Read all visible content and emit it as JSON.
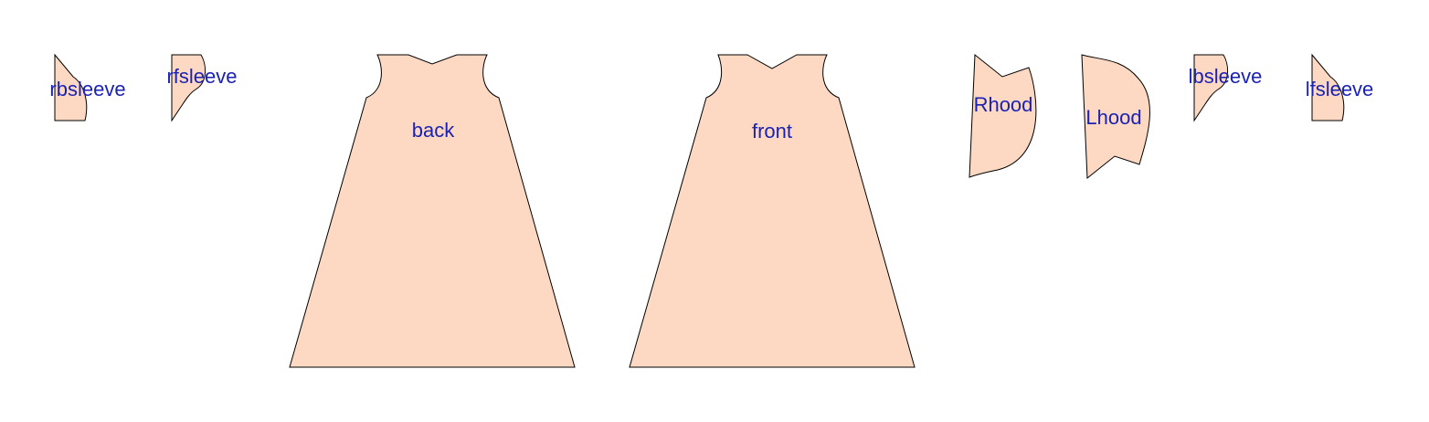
{
  "colors": {
    "piece_fill": "#fdd9c3",
    "piece_stroke": "#000000",
    "label_text": "#1a22b3",
    "background": "#ffffff"
  },
  "pieces": [
    {
      "id": "rbsleeve",
      "label": "rbsleeve"
    },
    {
      "id": "rfsleeve",
      "label": "rfsleeve"
    },
    {
      "id": "back",
      "label": "back"
    },
    {
      "id": "front",
      "label": "front"
    },
    {
      "id": "rhood",
      "label": "Rhood"
    },
    {
      "id": "lhood",
      "label": "Lhood"
    },
    {
      "id": "lbsleeve",
      "label": "lbsleeve"
    },
    {
      "id": "lfsleeve",
      "label": "lfsleeve"
    }
  ]
}
